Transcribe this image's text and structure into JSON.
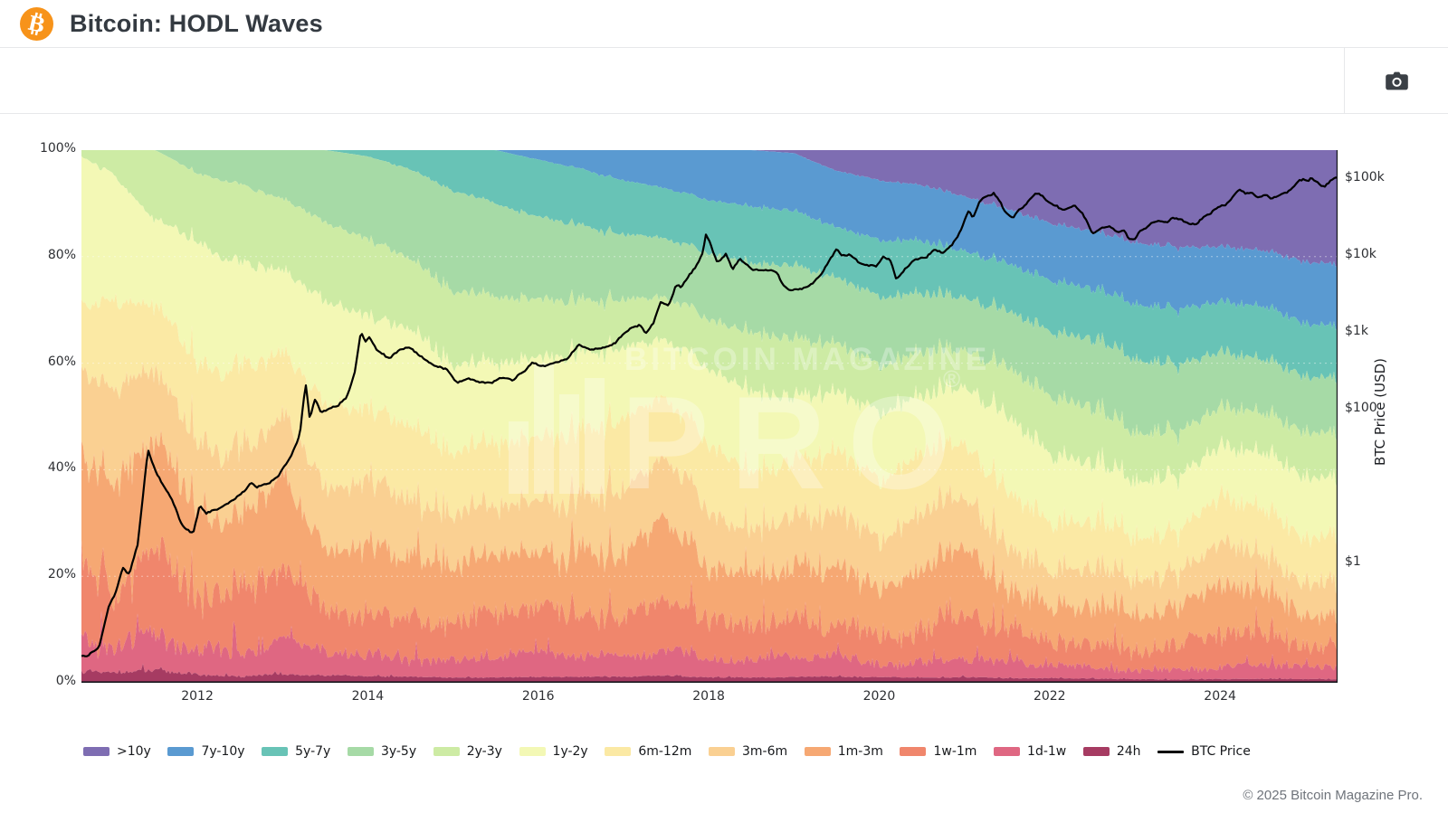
{
  "header": {
    "title": "Bitcoin: HODL Waves"
  },
  "icons": {
    "header_logo": "bitcoin-icon",
    "toolbar_button": "camera-icon"
  },
  "watermark": {
    "line1": "BITCOIN MAGAZINE",
    "line2": "PRO",
    "registered": "®"
  },
  "footer": {
    "copyright": "© 2025 Bitcoin Magazine Pro."
  },
  "brand_colors": {
    "bitcoin_orange": "#f7931a",
    "icon_dark": "#3b4046"
  },
  "chart_data": {
    "type": "area",
    "variant": "100-percent-stacked-with-log-price-overlay",
    "title": "Bitcoin: HODL Waves",
    "grid": "faint-white-dashed-horizontal-20-40-60-80",
    "legend_position": "bottom",
    "x_range": [
      2010.64,
      2025.38
    ],
    "x_ticks": [
      2012,
      2014,
      2016,
      2018,
      2020,
      2022,
      2024
    ],
    "y_axis_left": {
      "unit": "%",
      "range": [
        0,
        100
      ],
      "ticks": [
        {
          "label": "100%",
          "value": 100
        },
        {
          "label": "80%",
          "value": 80
        },
        {
          "label": "60%",
          "value": 60
        },
        {
          "label": "40%",
          "value": 40
        },
        {
          "label": "20%",
          "value": 20
        },
        {
          "label": "0%",
          "value": 0
        }
      ]
    },
    "y_axis_right": {
      "label": "BTC Price (USD)",
      "scale": "log",
      "ticks": [
        {
          "label": "$100k",
          "value": 100000
        },
        {
          "label": "$10k",
          "value": 10000
        },
        {
          "label": "$1k",
          "value": 1000
        },
        {
          "label": "$100",
          "value": 100
        },
        {
          "label": "$1",
          "value": 1
        }
      ]
    },
    "x": [
      2010.5,
      2011,
      2011.5,
      2012,
      2012.5,
      2013,
      2013.5,
      2014,
      2014.5,
      2015,
      2015.5,
      2016,
      2016.5,
      2017,
      2017.5,
      2018,
      2018.5,
      2019,
      2019.5,
      2020,
      2020.5,
      2021,
      2021.5,
      2022,
      2022.5,
      2023,
      2023.5,
      2024,
      2024.5,
      2025,
      2025.4
    ],
    "series": [
      {
        "name": ">10y",
        "color": "#7e6db2",
        "values": [
          0,
          0,
          0,
          0,
          0,
          0,
          0,
          0,
          0,
          0,
          0,
          0,
          0,
          0,
          0,
          0,
          0,
          0.5,
          3.5,
          5,
          6,
          8,
          10,
          12,
          13.5,
          15,
          16.5,
          17.5,
          18,
          19,
          19.5
        ]
      },
      {
        "name": "7y-10y",
        "color": "#5a9ad1",
        "values": [
          0,
          0,
          0,
          0,
          0,
          0,
          0,
          0,
          0,
          0,
          0,
          1.5,
          3,
          5,
          6.5,
          8,
          9,
          9.5,
          9.5,
          10,
          9.5,
          9.5,
          9.2,
          9.5,
          9.5,
          10,
          10.5,
          10,
          10,
          10.5,
          10.5
        ]
      },
      {
        "name": "5y-7y",
        "color": "#68c3b6",
        "values": [
          0,
          0,
          0,
          0,
          0,
          0,
          0,
          1,
          3,
          6,
          8,
          9,
          9,
          9,
          8.5,
          8.5,
          9,
          9,
          8.5,
          9.5,
          9,
          8,
          8,
          8.5,
          8.5,
          9,
          9.5,
          9,
          9.5,
          9,
          9
        ]
      },
      {
        "name": "3y-5y",
        "color": "#a6daa6",
        "values": [
          0,
          0,
          0,
          4,
          6,
          9,
          12,
          13,
          14,
          15,
          14,
          13,
          12,
          11,
          10,
          10.5,
          11,
          12,
          11,
          11.5,
          10,
          9,
          9.5,
          10.5,
          11.5,
          12,
          11.5,
          10,
          9.5,
          9.5,
          9.5
        ]
      },
      {
        "name": "2y-3y",
        "color": "#cdeba4",
        "values": [
          0,
          4,
          13,
          12,
          14,
          13,
          13,
          12,
          11,
          11,
          10,
          9,
          8.5,
          8,
          7.5,
          8,
          9.5,
          9.5,
          8,
          8,
          7.5,
          6.5,
          8,
          9.5,
          9,
          8,
          7.5,
          7,
          7,
          7.5,
          7.5
        ]
      },
      {
        "name": "1y-2y",
        "color": "#f3f8b5",
        "values": [
          28,
          22,
          16,
          21,
          19,
          15,
          17,
          14,
          15,
          13,
          12,
          12,
          12,
          11.5,
          10,
          12.5,
          13,
          10.5,
          9.5,
          11.5,
          10,
          10,
          13,
          11,
          9.5,
          9,
          9.5,
          9,
          10,
          10,
          9.5
        ]
      },
      {
        "name": "6m-12m",
        "color": "#fbe9a4",
        "values": [
          10,
          15,
          12,
          14,
          15,
          12,
          14,
          11,
          11,
          9.5,
          9.5,
          10,
          10.5,
          11,
          10,
          11,
          9.5,
          9,
          10,
          9.5,
          10.5,
          9,
          10,
          8,
          7.5,
          7,
          7,
          8.5,
          8.5,
          8,
          7.5
        ]
      },
      {
        "name": "3m-6m",
        "color": "#fad092",
        "values": [
          15,
          16,
          12,
          11,
          12,
          12,
          11,
          10,
          8.5,
          7.5,
          8,
          8.5,
          9,
          10,
          10,
          8.5,
          7,
          8.5,
          9,
          7.5,
          9,
          9,
          7,
          6,
          6,
          5.5,
          5.5,
          7.5,
          6.5,
          6,
          6
        ]
      },
      {
        "name": "1m-3m",
        "color": "#f6a873",
        "values": [
          22,
          18,
          20,
          12,
          12,
          16,
          10,
          11,
          9,
          8,
          8.5,
          9,
          10,
          11,
          13,
          8,
          7.5,
          9,
          10,
          8,
          9.5,
          11,
          6.5,
          6,
          6.5,
          5.5,
          5.5,
          8,
          7,
          6,
          6.5
        ]
      },
      {
        "name": "1w-1m",
        "color": "#f0866c",
        "values": [
          15,
          12,
          16,
          9,
          8,
          12,
          7,
          7,
          6,
          5,
          5.5,
          6,
          6.5,
          7,
          9,
          5.5,
          5,
          6,
          6.5,
          5.5,
          6,
          7,
          4.5,
          4,
          4,
          3.5,
          3.5,
          5,
          4.5,
          3.5,
          4
        ]
      },
      {
        "name": "1d-1w",
        "color": "#df6782",
        "values": [
          6,
          5,
          8,
          5,
          4,
          6,
          4,
          3.5,
          3,
          2.5,
          2.6,
          3,
          3,
          3.5,
          4.5,
          3,
          2.5,
          3,
          3.5,
          2.8,
          3,
          3.5,
          2.5,
          2,
          2,
          1.8,
          1.8,
          2.2,
          2.2,
          1.8,
          1.8
        ]
      },
      {
        "name": "24h",
        "color": "#a63b62",
        "values": [
          2,
          1.5,
          2.5,
          1.5,
          1.2,
          1.5,
          1.2,
          1,
          1,
          0.8,
          0.8,
          0.9,
          0.9,
          1,
          1.2,
          0.9,
          0.8,
          0.9,
          1,
          0.9,
          0.9,
          1,
          0.8,
          0.7,
          0.7,
          0.6,
          0.6,
          0.7,
          0.7,
          0.6,
          0.6
        ]
      }
    ],
    "price": {
      "name": "BTC Price",
      "color": "#000000",
      "unit": "USD",
      "points": [
        [
          2010.55,
          0.07
        ],
        [
          2010.7,
          0.06
        ],
        [
          2010.85,
          0.08
        ],
        [
          2010.95,
          0.25
        ],
        [
          2011.05,
          0.45
        ],
        [
          2011.12,
          0.9
        ],
        [
          2011.2,
          0.75
        ],
        [
          2011.3,
          1.8
        ],
        [
          2011.42,
          30
        ],
        [
          2011.5,
          16
        ],
        [
          2011.58,
          11
        ],
        [
          2011.7,
          7
        ],
        [
          2011.82,
          3.2
        ],
        [
          2011.95,
          2.5
        ],
        [
          2012.03,
          5.8
        ],
        [
          2012.1,
          4.4
        ],
        [
          2012.25,
          5
        ],
        [
          2012.4,
          6.5
        ],
        [
          2012.55,
          9
        ],
        [
          2012.63,
          11.5
        ],
        [
          2012.7,
          10
        ],
        [
          2012.85,
          10.8
        ],
        [
          2012.95,
          13.3
        ],
        [
          2013.1,
          25
        ],
        [
          2013.2,
          47
        ],
        [
          2013.27,
          230
        ],
        [
          2013.32,
          77
        ],
        [
          2013.38,
          140
        ],
        [
          2013.45,
          91
        ],
        [
          2013.55,
          100
        ],
        [
          2013.65,
          110
        ],
        [
          2013.75,
          140
        ],
        [
          2013.85,
          320
        ],
        [
          2013.92,
          1100
        ],
        [
          2013.97,
          780
        ],
        [
          2014.02,
          920
        ],
        [
          2014.1,
          620
        ],
        [
          2014.25,
          450
        ],
        [
          2014.38,
          590
        ],
        [
          2014.5,
          640
        ],
        [
          2014.63,
          500
        ],
        [
          2014.78,
          380
        ],
        [
          2014.92,
          330
        ],
        [
          2015.05,
          215
        ],
        [
          2015.18,
          255
        ],
        [
          2015.3,
          236
        ],
        [
          2015.45,
          228
        ],
        [
          2015.55,
          262
        ],
        [
          2015.7,
          236
        ],
        [
          2015.85,
          320
        ],
        [
          2015.93,
          420
        ],
        [
          2016.05,
          378
        ],
        [
          2016.2,
          418
        ],
        [
          2016.35,
          452
        ],
        [
          2016.47,
          680
        ],
        [
          2016.6,
          610
        ],
        [
          2016.75,
          650
        ],
        [
          2016.9,
          740
        ],
        [
          2017.0,
          980
        ],
        [
          2017.12,
          1150
        ],
        [
          2017.2,
          1220
        ],
        [
          2017.26,
          950
        ],
        [
          2017.35,
          1350
        ],
        [
          2017.43,
          2550
        ],
        [
          2017.53,
          2350
        ],
        [
          2017.62,
          4300
        ],
        [
          2017.68,
          3900
        ],
        [
          2017.78,
          5600
        ],
        [
          2017.86,
          7300
        ],
        [
          2017.93,
          11000
        ],
        [
          2017.97,
          19200
        ],
        [
          2018.03,
          13500
        ],
        [
          2018.1,
          8300
        ],
        [
          2018.2,
          11000
        ],
        [
          2018.28,
          6900
        ],
        [
          2018.37,
          9200
        ],
        [
          2018.5,
          6450
        ],
        [
          2018.65,
          6500
        ],
        [
          2018.8,
          6350
        ],
        [
          2018.87,
          4300
        ],
        [
          2018.95,
          3700
        ],
        [
          2019.08,
          3650
        ],
        [
          2019.2,
          4100
        ],
        [
          2019.32,
          5600
        ],
        [
          2019.42,
          8800
        ],
        [
          2019.5,
          12800
        ],
        [
          2019.56,
          10300
        ],
        [
          2019.65,
          10600
        ],
        [
          2019.77,
          8200
        ],
        [
          2019.88,
          7300
        ],
        [
          2019.97,
          7200
        ],
        [
          2020.05,
          9500
        ],
        [
          2020.14,
          8700
        ],
        [
          2020.2,
          5000
        ],
        [
          2020.3,
          6900
        ],
        [
          2020.42,
          9200
        ],
        [
          2020.55,
          9300
        ],
        [
          2020.65,
          11800
        ],
        [
          2020.75,
          10700
        ],
        [
          2020.85,
          13800
        ],
        [
          2020.93,
          19200
        ],
        [
          2021.0,
          29000
        ],
        [
          2021.05,
          40000
        ],
        [
          2021.1,
          32000
        ],
        [
          2021.17,
          49000
        ],
        [
          2021.24,
          58000
        ],
        [
          2021.3,
          59000
        ],
        [
          2021.34,
          63500
        ],
        [
          2021.42,
          49000
        ],
        [
          2021.48,
          36000
        ],
        [
          2021.57,
          32000
        ],
        [
          2021.63,
          40000
        ],
        [
          2021.72,
          48000
        ],
        [
          2021.8,
          62000
        ],
        [
          2021.86,
          66500
        ],
        [
          2021.93,
          57000
        ],
        [
          2022.0,
          47000
        ],
        [
          2022.08,
          43500
        ],
        [
          2022.15,
          38500
        ],
        [
          2022.24,
          43000
        ],
        [
          2022.3,
          46000
        ],
        [
          2022.37,
          39000
        ],
        [
          2022.44,
          29500
        ],
        [
          2022.5,
          19500
        ],
        [
          2022.6,
          22500
        ],
        [
          2022.7,
          23500
        ],
        [
          2022.8,
          19800
        ],
        [
          2022.88,
          20800
        ],
        [
          2022.93,
          16200
        ],
        [
          2023.0,
          16800
        ],
        [
          2023.07,
          22500
        ],
        [
          2023.15,
          24500
        ],
        [
          2023.2,
          27800
        ],
        [
          2023.3,
          28500
        ],
        [
          2023.38,
          26500
        ],
        [
          2023.45,
          30500
        ],
        [
          2023.55,
          29000
        ],
        [
          2023.63,
          25800
        ],
        [
          2023.73,
          27000
        ],
        [
          2023.82,
          34500
        ],
        [
          2023.9,
          37500
        ],
        [
          2023.97,
          43500
        ],
        [
          2024.05,
          44500
        ],
        [
          2024.12,
          50000
        ],
        [
          2024.2,
          68000
        ],
        [
          2024.23,
          71000
        ],
        [
          2024.3,
          64500
        ],
        [
          2024.38,
          67000
        ],
        [
          2024.45,
          58000
        ],
        [
          2024.53,
          65000
        ],
        [
          2024.6,
          56500
        ],
        [
          2024.68,
          61000
        ],
        [
          2024.75,
          63500
        ],
        [
          2024.82,
          68500
        ],
        [
          2024.88,
          79000
        ],
        [
          2024.93,
          94000
        ],
        [
          2024.98,
          97000
        ],
        [
          2025.03,
          94500
        ],
        [
          2025.07,
          103000
        ],
        [
          2025.13,
          97000
        ],
        [
          2025.18,
          84500
        ],
        [
          2025.23,
          83000
        ],
        [
          2025.28,
          94000
        ],
        [
          2025.33,
          103500
        ],
        [
          2025.38,
          104000
        ]
      ]
    }
  }
}
